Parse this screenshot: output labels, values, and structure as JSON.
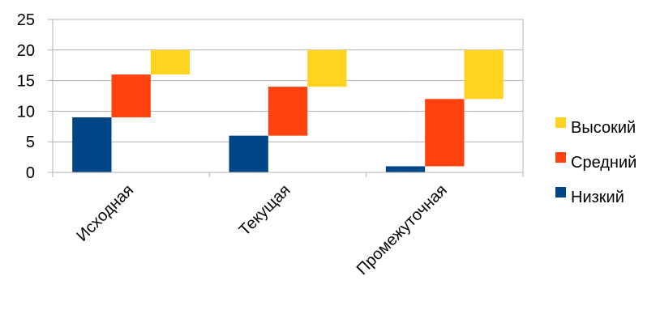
{
  "chart_data": {
    "type": "bar",
    "stacked": "floating",
    "categories": [
      "Исходная",
      "Текущая",
      "Промежуточная"
    ],
    "ylim": [
      0,
      25
    ],
    "yticks": [
      "0",
      "5",
      "10",
      "15",
      "20",
      "25"
    ],
    "grid": true,
    "legend_position": "right",
    "series": [
      {
        "name": "Низкий",
        "color": "#004586",
        "ranges": [
          [
            0,
            9
          ],
          [
            0,
            6
          ],
          [
            0,
            1
          ]
        ]
      },
      {
        "name": "Средний",
        "color": "#ff420e",
        "ranges": [
          [
            9,
            16
          ],
          [
            6,
            14
          ],
          [
            1,
            12
          ]
        ]
      },
      {
        "name": "Высокий",
        "color": "#ffd320",
        "ranges": [
          [
            16,
            20
          ],
          [
            14,
            20
          ],
          [
            12,
            20
          ]
        ]
      }
    ],
    "legend_order": [
      "Высокий",
      "Средний",
      "Низкий"
    ]
  }
}
